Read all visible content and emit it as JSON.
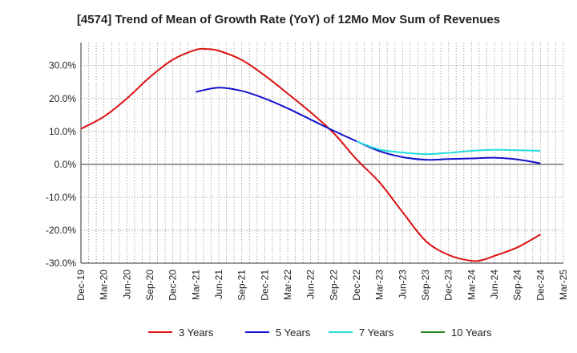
{
  "chart_data": {
    "type": "line",
    "title": "[4574]  Trend of Mean of Growth Rate (YoY) of 12Mo Mov Sum of Revenues",
    "xlabel": "",
    "ylabel": "",
    "ylim": [
      -30,
      37
    ],
    "yticks": [
      30,
      20,
      10,
      0,
      -10,
      -20,
      -30
    ],
    "ytick_labels": [
      "30.0%",
      "20.0%",
      "10.0%",
      "0.0%",
      "-10.0%",
      "-20.0%",
      "-30.0%"
    ],
    "x_tick_labels": [
      "Dec-19",
      "Mar-20",
      "Jun-20",
      "Sep-20",
      "Dec-20",
      "Mar-21",
      "Jun-21",
      "Sep-21",
      "Dec-21",
      "Mar-22",
      "Jun-22",
      "Sep-22",
      "Dec-22",
      "Mar-23",
      "Jun-23",
      "Sep-23",
      "Dec-23",
      "Mar-24",
      "Jun-24",
      "Sep-24",
      "Dec-24",
      "Mar-25"
    ],
    "grid": true,
    "legend_position": "bottom",
    "series": [
      {
        "name": "3 Years",
        "color": "#dd1111",
        "x": [
          0,
          1,
          2,
          3,
          4,
          5,
          5.5,
          6,
          7,
          8,
          9,
          10,
          11,
          12,
          13,
          14,
          15,
          16,
          17,
          17.5,
          18,
          19,
          20
        ],
        "values": [
          10.8,
          14.5,
          20,
          26.5,
          31.8,
          34.8,
          35,
          34.5,
          31.7,
          27,
          21.5,
          15.8,
          9.5,
          1.5,
          -5.5,
          -14.5,
          -23.2,
          -27.5,
          -29.3,
          -29,
          -27.8,
          -25.2,
          -21.3
        ]
      },
      {
        "name": "5 Years",
        "color": "#1111cc",
        "x": [
          5,
          6,
          7,
          8,
          9,
          10,
          11,
          12,
          13,
          14,
          15,
          16,
          17,
          18,
          19,
          20
        ],
        "values": [
          22,
          23.3,
          22.3,
          20,
          17,
          13.6,
          10.2,
          7,
          4,
          2.2,
          1.4,
          1.6,
          1.8,
          2,
          1.5,
          0.3
        ]
      },
      {
        "name": "7 Years",
        "color": "#22dddd",
        "x": [
          12,
          13,
          14,
          15,
          16,
          17,
          18,
          19,
          20
        ],
        "values": [
          7,
          4.5,
          3.6,
          3.1,
          3.5,
          4.1,
          4.4,
          4.3,
          4.1
        ]
      },
      {
        "name": "10 Years",
        "color": "#228822",
        "x": [],
        "values": []
      }
    ]
  }
}
